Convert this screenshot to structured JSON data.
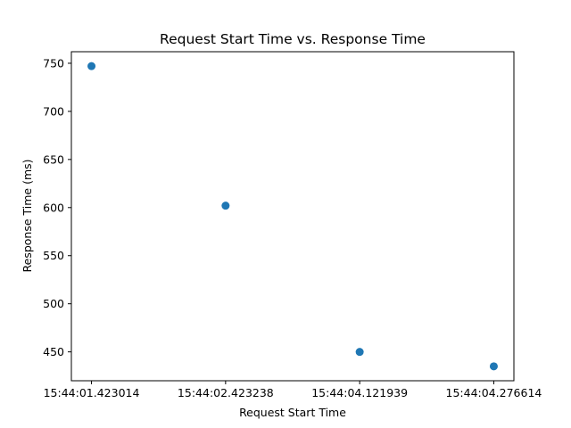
{
  "chart_data": {
    "type": "scatter",
    "title": "Request Start Time vs. Response Time",
    "xlabel": "Request Start Time",
    "ylabel": "Response Time (ms)",
    "x": [
      "15:44:01.423014",
      "15:44:02.423238",
      "15:44:04.121939",
      "15:44:04.276614"
    ],
    "y": [
      747,
      602,
      450,
      435
    ],
    "yticks": [
      450,
      500,
      550,
      600,
      650,
      700,
      750
    ],
    "ylim": [
      420,
      762
    ],
    "grid": false,
    "marker_color": "#1f77b4"
  }
}
